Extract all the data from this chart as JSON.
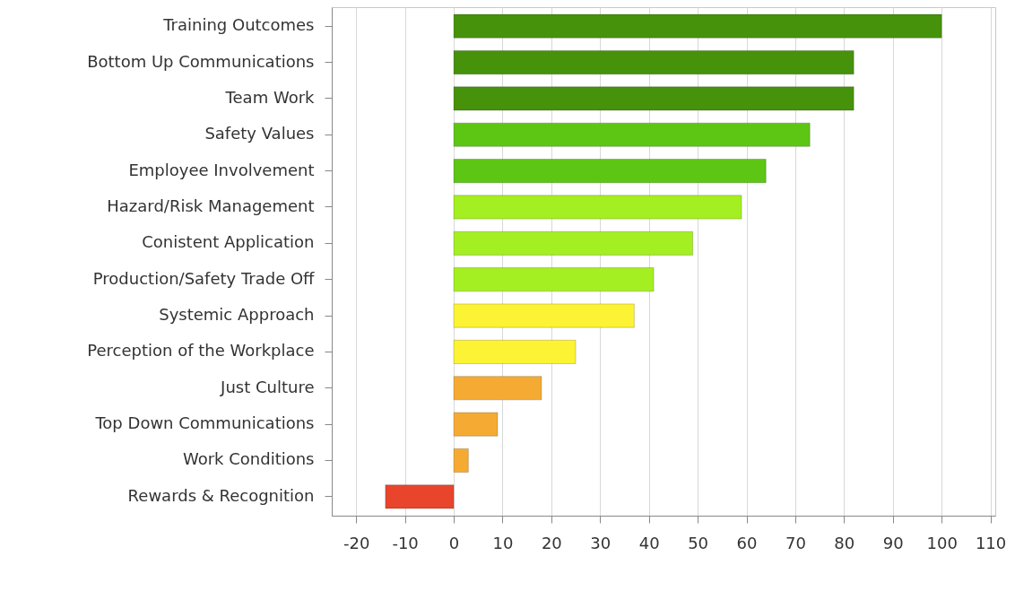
{
  "chart_data": {
    "type": "bar",
    "orientation": "horizontal",
    "categories": [
      "Training Outcomes",
      "Bottom Up Communications",
      "Team Work",
      "Safety Values",
      "Employee Involvement",
      "Hazard/Risk Management",
      "Conistent Application",
      "Production/Safety Trade Off",
      "Systemic Approach",
      "Perception of the Workplace",
      "Just Culture",
      "Top Down Communications",
      "Work Conditions",
      "Rewards & Recognition"
    ],
    "values": [
      100,
      82,
      82,
      73,
      64,
      59,
      49,
      41,
      37,
      25,
      18,
      9,
      3,
      -14
    ],
    "colors": [
      "#46920a",
      "#46920a",
      "#46920a",
      "#5dc513",
      "#5dc513",
      "#a4ef21",
      "#a4ef21",
      "#a4ef21",
      "#fbf334",
      "#fbf334",
      "#f5ab33",
      "#f5ab33",
      "#f5ab33",
      "#e8452c"
    ],
    "xlim": [
      -25,
      111
    ],
    "xticks": [
      -20,
      -10,
      0,
      10,
      20,
      30,
      40,
      50,
      60,
      70,
      80,
      90,
      100,
      110
    ],
    "grid": "x"
  }
}
